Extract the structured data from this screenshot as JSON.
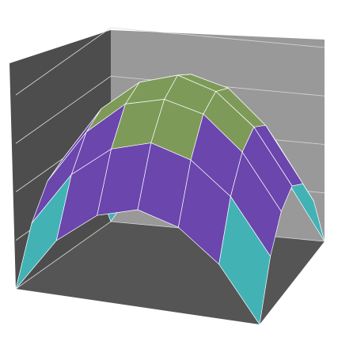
{
  "chart_data": {
    "type": "surface",
    "z": [
      [
        0,
        0.28,
        0.44,
        0.5,
        0.44,
        0.28,
        0
      ],
      [
        0.28,
        0.56,
        0.72,
        0.78,
        0.72,
        0.56,
        0.28
      ],
      [
        0.44,
        0.72,
        0.89,
        0.94,
        0.89,
        0.72,
        0.44
      ],
      [
        0.5,
        0.78,
        0.94,
        1,
        0.94,
        0.78,
        0.5
      ],
      [
        0.44,
        0.72,
        0.89,
        0.94,
        0.89,
        0.72,
        0.44
      ],
      [
        0.28,
        0.56,
        0.72,
        0.78,
        0.72,
        0.56,
        0.28
      ],
      [
        0,
        0.28,
        0.44,
        0.5,
        0.44,
        0.28,
        0
      ]
    ],
    "zlim": [
      0,
      1
    ],
    "zticks": [
      0,
      0.25,
      0.5,
      0.75,
      1
    ],
    "grid": true,
    "colors": [
      "#b5803f",
      "#43b2b5",
      "#6a46ad",
      "#7e9a59"
    ]
  }
}
